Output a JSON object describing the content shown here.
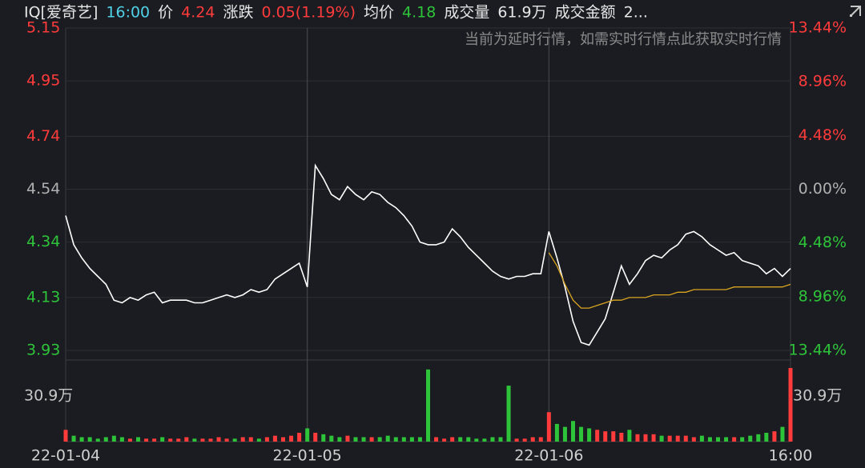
{
  "chart_data": {
    "type": "line",
    "header": [
      {
        "text": "IQ[爱奇艺]",
        "color": "#e6e6e6"
      },
      {
        "text": "16:00",
        "color": "#4fd1e8"
      },
      {
        "text": "价",
        "color": "#e6e6e6"
      },
      {
        "text": "4.24",
        "color": "#ff3b3b"
      },
      {
        "text": "涨跌",
        "color": "#e6e6e6"
      },
      {
        "text": "0.05(1.19%)",
        "color": "#ff3b3b"
      },
      {
        "text": "均价",
        "color": "#e6e6e6"
      },
      {
        "text": "4.18",
        "color": "#2ec43a"
      },
      {
        "text": "成交量",
        "color": "#e6e6e6"
      },
      {
        "text": "61.9万",
        "color": "#e6e6e6"
      },
      {
        "text": "成交金额",
        "color": "#e6e6e6"
      },
      {
        "text": "2...",
        "color": "#e6e6e6"
      }
    ],
    "notice": "当前为延时行情，如需实时行情点此获取实时行情",
    "categories": [
      "22-01-04",
      null,
      null,
      null,
      null,
      null,
      null,
      null,
      null,
      null,
      null,
      null,
      null,
      null,
      null,
      null,
      null,
      null,
      null,
      null,
      null,
      null,
      null,
      null,
      null,
      null,
      null,
      null,
      null,
      null,
      "22-01-05",
      null,
      null,
      null,
      null,
      null,
      null,
      null,
      null,
      null,
      null,
      null,
      null,
      null,
      null,
      null,
      null,
      null,
      null,
      null,
      null,
      null,
      null,
      null,
      null,
      null,
      null,
      null,
      null,
      null,
      "22-01-06",
      null,
      null,
      null,
      null,
      null,
      null,
      null,
      null,
      null,
      null,
      null,
      null,
      null,
      null,
      null,
      null,
      null,
      null,
      null,
      null,
      null,
      null,
      null,
      null,
      null,
      null,
      null,
      null,
      null,
      "16:00"
    ],
    "series": [
      {
        "name": "价",
        "color": "#ffffff",
        "values": [
          4.44,
          4.33,
          4.28,
          4.24,
          4.21,
          4.18,
          4.12,
          4.11,
          4.13,
          4.12,
          4.14,
          4.15,
          4.11,
          4.12,
          4.12,
          4.12,
          4.11,
          4.11,
          4.12,
          4.13,
          4.14,
          4.13,
          4.14,
          4.16,
          4.15,
          4.16,
          4.2,
          4.22,
          4.24,
          4.26,
          4.17,
          4.63,
          4.58,
          4.52,
          4.5,
          4.55,
          4.52,
          4.5,
          4.53,
          4.52,
          4.49,
          4.47,
          4.44,
          4.4,
          4.34,
          4.33,
          4.33,
          4.34,
          4.39,
          4.36,
          4.32,
          4.29,
          4.26,
          4.23,
          4.21,
          4.2,
          4.21,
          4.21,
          4.22,
          4.22,
          4.38,
          4.28,
          4.17,
          4.04,
          3.96,
          3.95,
          4.0,
          4.05,
          4.15,
          4.25,
          4.18,
          4.22,
          4.27,
          4.29,
          4.28,
          4.31,
          4.33,
          4.37,
          4.38,
          4.36,
          4.33,
          4.31,
          4.29,
          4.3,
          4.27,
          4.26,
          4.25,
          4.22,
          4.24,
          4.21,
          4.24
        ]
      },
      {
        "name": "均价",
        "color": "#d9a520",
        "values": [
          null,
          null,
          null,
          null,
          null,
          null,
          null,
          null,
          null,
          null,
          null,
          null,
          null,
          null,
          null,
          null,
          null,
          null,
          null,
          null,
          null,
          null,
          null,
          null,
          null,
          null,
          null,
          null,
          null,
          null,
          null,
          null,
          null,
          null,
          null,
          null,
          null,
          null,
          null,
          null,
          null,
          null,
          null,
          null,
          null,
          null,
          null,
          null,
          null,
          null,
          null,
          null,
          null,
          null,
          null,
          null,
          null,
          null,
          null,
          null,
          4.3,
          4.25,
          4.18,
          4.12,
          4.09,
          4.09,
          4.1,
          4.11,
          4.12,
          4.12,
          4.13,
          4.13,
          4.13,
          4.14,
          4.14,
          4.14,
          4.15,
          4.15,
          4.16,
          4.16,
          4.16,
          4.16,
          4.16,
          4.17,
          4.17,
          4.17,
          4.17,
          4.17,
          4.17,
          4.17,
          4.18
        ]
      }
    ],
    "volume": [
      8,
      4,
      3,
      3,
      2,
      3,
      4,
      3,
      2,
      3,
      2,
      2,
      3,
      2,
      2,
      3,
      2,
      2,
      2,
      3,
      2,
      2,
      3,
      3,
      2,
      3,
      4,
      3,
      4,
      6,
      9,
      6,
      5,
      4,
      3,
      4,
      3,
      3,
      3,
      3,
      4,
      3,
      3,
      3,
      3,
      49,
      3,
      2,
      3,
      3,
      3,
      2,
      2,
      3,
      3,
      38,
      2,
      2,
      3,
      3,
      20,
      12,
      10,
      14,
      10,
      9,
      8,
      7,
      7,
      6,
      8,
      5,
      5,
      5,
      4,
      4,
      4,
      4,
      3,
      4,
      3,
      3,
      3,
      3,
      3,
      4,
      5,
      6,
      7,
      10,
      50
    ],
    "vlim": [
      0,
      50
    ],
    "vticks": [
      {
        "value": 30.9,
        "label": "30.9万"
      }
    ],
    "ylim": [
      3.93,
      5.15
    ],
    "yticks": [
      5.15,
      4.95,
      4.74,
      4.54,
      4.34,
      4.13,
      3.93
    ],
    "y2lim": [
      -13.44,
      13.44
    ],
    "y2ticks": [
      {
        "value": 13.44,
        "label": "13.44%"
      },
      {
        "value": 8.96,
        "label": "8.96%"
      },
      {
        "value": 4.48,
        "label": "4.48%"
      },
      {
        "value": 0,
        "label": "0.00%"
      },
      {
        "value": -4.48,
        "label": "4.48%"
      },
      {
        "value": -8.96,
        "label": "8.96%"
      },
      {
        "value": -13.44,
        "label": "13.44%"
      }
    ],
    "up_color": "#ff3b3b",
    "down_color": "#2ec43a",
    "flat_color": "#b0b0b0",
    "grid": true
  }
}
